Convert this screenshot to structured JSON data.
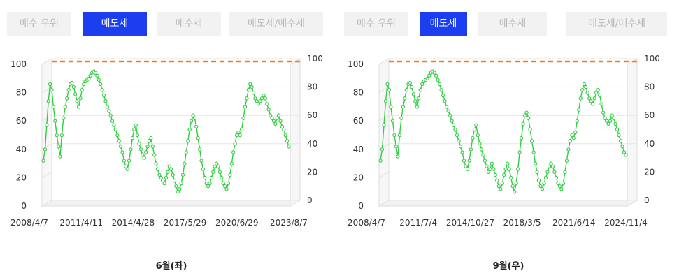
{
  "panels": [
    {
      "tabs": [
        {
          "label": "매수 우위",
          "active": false
        },
        {
          "label": "매도세",
          "active": true
        },
        {
          "label": "매수세",
          "active": false
        },
        {
          "label": "매도세/매수세",
          "active": false
        }
      ],
      "caption": "6월(좌)"
    },
    {
      "tabs": [
        {
          "label": "매수 우위",
          "active": false
        },
        {
          "label": "매도세",
          "active": true
        },
        {
          "label": "매수세",
          "active": false
        },
        {
          "label": "매도세/매수세",
          "active": false
        }
      ],
      "caption": "9월(우)"
    }
  ],
  "colors": {
    "series": "#33cc44",
    "reference": "#f07f22",
    "active_tab": "#1a3ef0",
    "inactive_tab": "#f2f2f2"
  },
  "chart_data": [
    {
      "type": "line",
      "title": "",
      "xlabel": "",
      "ylabel": "",
      "x_tick_labels": [
        "2008/4/7",
        "2011/4/11",
        "2014/4/28",
        "2017/5/29",
        "2020/6/29",
        "2023/8/7"
      ],
      "y_ticks_left": [
        0,
        20,
        40,
        60,
        80,
        100
      ],
      "y_ticks_right": [
        0,
        20,
        40,
        60,
        80,
        100
      ],
      "ylim": [
        0,
        100
      ],
      "grid": true,
      "reference_line": {
        "value": 100,
        "style": "dashed"
      },
      "series": [
        {
          "values": [
            30,
            38,
            55,
            72,
            84,
            80,
            68,
            58,
            48,
            40,
            33,
            48,
            60,
            68,
            74,
            80,
            84,
            85,
            82,
            77,
            72,
            68,
            74,
            80,
            84,
            86,
            87,
            88,
            90,
            92,
            93,
            92,
            90,
            87,
            84,
            80,
            76,
            72,
            68,
            65,
            62,
            58,
            55,
            52,
            48,
            44,
            40,
            36,
            30,
            26,
            24,
            30,
            38,
            46,
            52,
            55,
            48,
            42,
            38,
            34,
            32,
            36,
            40,
            44,
            46,
            40,
            34,
            28,
            24,
            20,
            18,
            16,
            14,
            18,
            22,
            26,
            24,
            20,
            16,
            12,
            8,
            10,
            14,
            20,
            28,
            36,
            44,
            52,
            58,
            62,
            60,
            54,
            46,
            38,
            30,
            24,
            18,
            14,
            12,
            14,
            18,
            22,
            26,
            28,
            26,
            22,
            18,
            14,
            12,
            10,
            14,
            20,
            28,
            36,
            42,
            48,
            50,
            48,
            52,
            60,
            68,
            74,
            80,
            84,
            82,
            78,
            74,
            72,
            70,
            72,
            74,
            76,
            74,
            70,
            66,
            62,
            60,
            58,
            56,
            60,
            62,
            58,
            54,
            52,
            48,
            44,
            40
          ]
        }
      ]
    },
    {
      "type": "line",
      "title": "",
      "xlabel": "",
      "ylabel": "",
      "x_tick_labels": [
        "2008/4/7",
        "2011/7/4",
        "2014/10/27",
        "2018/3/5",
        "2021/6/14",
        "2024/11/4"
      ],
      "y_ticks_left": [
        0,
        20,
        40,
        60,
        80,
        100
      ],
      "y_ticks_right": [
        0,
        20,
        40,
        60,
        80,
        100
      ],
      "ylim": [
        0,
        100
      ],
      "grid": true,
      "reference_line": {
        "value": 100,
        "style": "dashed"
      },
      "series": [
        {
          "values": [
            30,
            38,
            55,
            72,
            84,
            80,
            68,
            58,
            48,
            40,
            33,
            48,
            60,
            68,
            74,
            80,
            84,
            85,
            82,
            77,
            72,
            68,
            74,
            80,
            84,
            86,
            87,
            88,
            90,
            92,
            93,
            92,
            90,
            87,
            84,
            80,
            76,
            72,
            68,
            65,
            62,
            58,
            55,
            52,
            48,
            44,
            40,
            36,
            30,
            26,
            24,
            30,
            38,
            46,
            52,
            55,
            48,
            42,
            38,
            34,
            30,
            26,
            22,
            24,
            28,
            24,
            20,
            16,
            12,
            10,
            14,
            20,
            24,
            28,
            24,
            18,
            12,
            8,
            14,
            24,
            36,
            46,
            56,
            62,
            64,
            60,
            52,
            44,
            36,
            28,
            22,
            16,
            12,
            10,
            14,
            18,
            22,
            26,
            28,
            26,
            22,
            18,
            14,
            12,
            10,
            14,
            22,
            30,
            38,
            44,
            48,
            46,
            50,
            58,
            66,
            74,
            80,
            84,
            82,
            78,
            74,
            72,
            70,
            74,
            78,
            80,
            76,
            70,
            64,
            60,
            58,
            56,
            58,
            62,
            60,
            56,
            52,
            48,
            44,
            40,
            36,
            34
          ]
        }
      ]
    }
  ]
}
